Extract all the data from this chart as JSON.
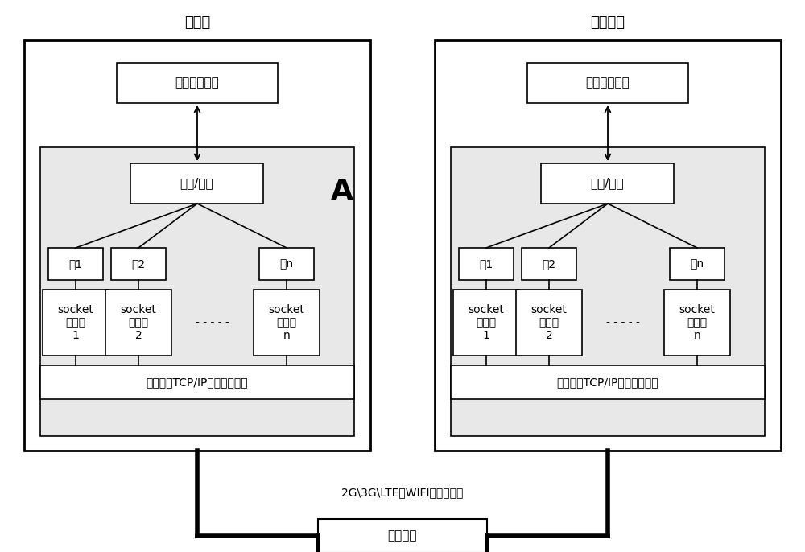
{
  "title_left": "终端侧",
  "title_right": "服务器侧",
  "network_data_label": "网络数据业务",
  "pack_unpack_label": "组包/解包",
  "pack_labels": [
    "包1",
    "包2",
    "包n"
  ],
  "client_labels": [
    "socket\n客户端\n1",
    "socket\n客户端\n2",
    "socket\n客户端\nn"
  ],
  "server_labels": [
    "socket\n服务端\n1",
    "socket\n服务端\n2",
    "socket\n服务端\nn"
  ],
  "tcp_label": "支持多个TCP/IP协议服务内核",
  "network_channel_label": "网络通道",
  "network_types_label": "2G\\3G\\LTE，WIFI，以太网等",
  "A_label": "A",
  "bg_color": "#ffffff",
  "dotted_bg": "#e8e8e8"
}
